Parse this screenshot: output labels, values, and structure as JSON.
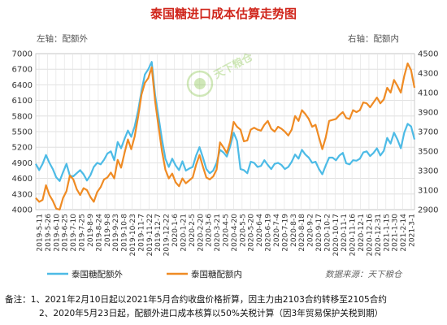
{
  "chart_data": {
    "type": "line",
    "title": "泰国糖进口成本估算走势图",
    "left_axis_label": "左轴：配额外",
    "right_axis_label": "右轴：配额内",
    "y_left": {
      "min": 4000,
      "max": 7000,
      "ticks": [
        4000,
        4300,
        4600,
        4900,
        5200,
        5500,
        5800,
        6100,
        6400,
        6700,
        7000
      ]
    },
    "y_right": {
      "min": 2900,
      "max": 4500,
      "ticks": [
        2900,
        3100,
        3300,
        3500,
        3700,
        3900,
        4100,
        4300,
        4500
      ]
    },
    "x_labels": [
      "2019-5-11",
      "2019-5-26",
      "2019-6-10",
      "2019-6-25",
      "2019-7-10",
      "2019-7-25",
      "2019-8-9",
      "2019-8-24",
      "2019-9-8",
      "2019-9-23",
      "2019-10-8",
      "2019-10-23",
      "2019-11-7",
      "2019-11-22",
      "2019-12-7",
      "2019-12-22",
      "2020-1-6",
      "2020-1-21",
      "2020-2-5",
      "2020-2-20",
      "2020-3-6",
      "2020-3-21",
      "2020-4-5",
      "2020-4-20",
      "2020-5-5",
      "2020-5-20",
      "2020-6-4",
      "2020-6-19",
      "2020-7-4",
      "2020-7-19",
      "2020-8-3",
      "2020-8-18",
      "2020-9-2",
      "2020-9-17",
      "2020-10-2",
      "2020-10-17",
      "2020-11-1",
      "2020-11-16",
      "2020-12-1",
      "2020-12-16",
      "2020-12-31",
      "2021-1-15",
      "2021-1-30",
      "2021-2-14",
      "2021-3-1"
    ],
    "grid": true,
    "legend_position": "bottom",
    "series": [
      {
        "name": "泰国糖配额外",
        "axis": "left",
        "color": "#4dbbe6",
        "values": [
          4880,
          4760,
          4880,
          5050,
          4900,
          4780,
          4620,
          4550,
          4720,
          4880,
          4650,
          4640,
          4700,
          4760,
          4680,
          4560,
          4660,
          4820,
          4900,
          4870,
          4960,
          5080,
          5120,
          4950,
          5300,
          5180,
          5360,
          5520,
          5400,
          5600,
          5900,
          6280,
          6600,
          6700,
          6840,
          6200,
          5780,
          5350,
          4980,
          4820,
          4980,
          4850,
          4760,
          4930,
          4750,
          4790,
          4820,
          5040,
          5200,
          5000,
          4780,
          4700,
          4750,
          4900,
          5150,
          5100,
          5020,
          5220,
          5480,
          5320,
          4780,
          4760,
          4700,
          4920,
          4900,
          4820,
          4840,
          4950,
          4860,
          4780,
          4880,
          4900,
          4860,
          4780,
          4820,
          4920,
          5060,
          4980,
          5150,
          5060,
          5000,
          4900,
          4920,
          4780,
          4680,
          4850,
          5000,
          5000,
          4950,
          5040,
          5090,
          4890,
          4870,
          4950,
          4940,
          4980,
          5100,
          5120,
          5030,
          5090,
          5180,
          5040,
          5130,
          5380,
          5270,
          5480,
          5350,
          5180,
          5480,
          5650,
          5600,
          5350
        ]
      },
      {
        "name": "泰国糖配额内",
        "axis": "right",
        "color": "#ef8b24",
        "values": [
          3020,
          2980,
          3000,
          3150,
          3050,
          2990,
          2910,
          2900,
          3020,
          3090,
          3250,
          3210,
          3110,
          3050,
          3120,
          3100,
          3030,
          2980,
          3080,
          3130,
          3210,
          3230,
          3280,
          3220,
          3410,
          3330,
          3480,
          3620,
          3520,
          3650,
          3850,
          4080,
          4200,
          4250,
          4360,
          4010,
          3750,
          3500,
          3310,
          3220,
          3270,
          3180,
          3140,
          3220,
          3170,
          3200,
          3230,
          3360,
          3460,
          3340,
          3230,
          3210,
          3240,
          3310,
          3590,
          3540,
          3480,
          3600,
          3800,
          3750,
          3720,
          3600,
          3610,
          3720,
          3740,
          3720,
          3710,
          3770,
          3810,
          3730,
          3700,
          3750,
          3730,
          3700,
          3660,
          3720,
          3860,
          3810,
          3920,
          3880,
          3830,
          3750,
          3770,
          3640,
          3520,
          3640,
          3810,
          3820,
          3830,
          3870,
          3900,
          3840,
          3830,
          3920,
          3900,
          3920,
          4000,
          3990,
          3950,
          4000,
          4050,
          3990,
          4030,
          4150,
          4100,
          4230,
          4170,
          4100,
          4270,
          4400,
          4330,
          4150
        ]
      }
    ]
  },
  "watermark": "天下粮仓",
  "source": "数据来源：天下粮仓",
  "notes": [
    "备注：1、2021年2月10日起以2021年5月合约收盘价格折算，因主力由2103合约转移至2105合约",
    "2、2020年5月23日起，配额外进口成本核算以50%关税计算（因3年贸易保护关税到期）"
  ]
}
